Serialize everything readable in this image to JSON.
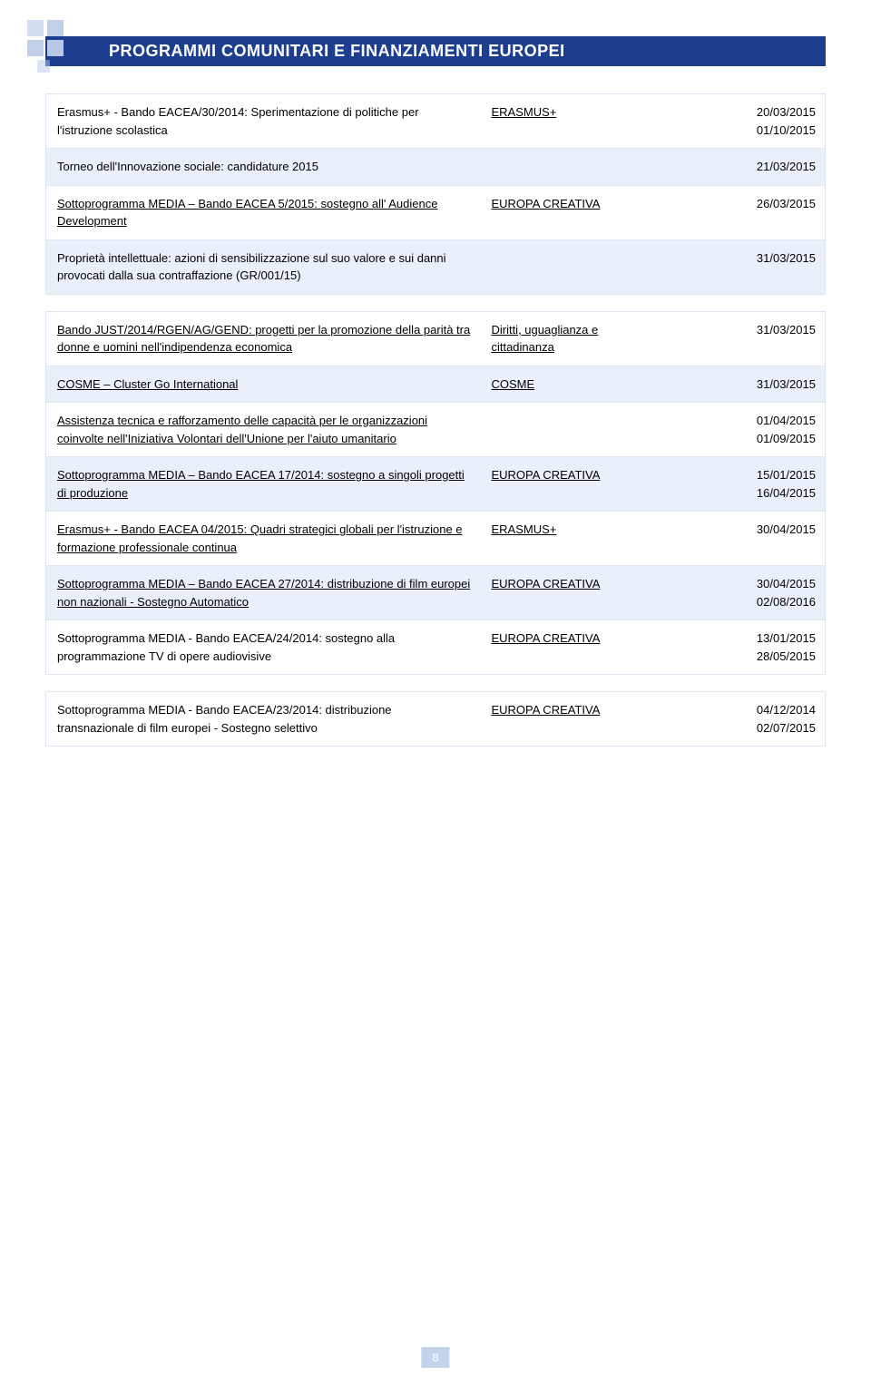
{
  "colors": {
    "header_bg": "#1d3e8f",
    "header_text": "#ffffff",
    "shaded_row": "#e9f0f9",
    "border": "#dfe6f2",
    "logo_sq": "#b7c7e5",
    "pagenum_bg": "#c5d3ea"
  },
  "header": {
    "title": "PROGRAMMI COMUNITARI E FINANZIAMENTI EUROPEI"
  },
  "blocks": [
    {
      "rows": [
        {
          "shaded": false,
          "c1": "Erasmus+ - Bando EACEA/30/2014: Sperimentazione di politiche per l'istruzione scolastica",
          "c1_ul": false,
          "c2": "ERASMUS+",
          "c2_ul": true,
          "c3a": "20/03/2015",
          "c3b": "01/10/2015"
        },
        {
          "shaded": true,
          "c1": "Torneo dell'Innovazione sociale: candidature 2015",
          "c1_ul": false,
          "c2": "",
          "c2_ul": false,
          "c3a": "21/03/2015",
          "c3b": ""
        },
        {
          "shaded": false,
          "c1": "Sottoprogramma MEDIA – Bando EACEA 5/2015: sostegno all' Audience Development",
          "c1_ul": true,
          "c2": "EUROPA CREATIVA",
          "c2_ul": true,
          "c3a": "26/03/2015",
          "c3b": ""
        },
        {
          "shaded": true,
          "c1": "Proprietà intellettuale: azioni di sensibilizzazione sul suo valore e sui danni provocati dalla sua contraffazione (GR/001/15)",
          "c1_ul": false,
          "c2": "",
          "c2_ul": false,
          "c3a": "31/03/2015",
          "c3b": ""
        }
      ]
    },
    {
      "rows": [
        {
          "shaded": false,
          "c1": "Bando JUST/2014/RGEN/AG/GEND: progetti per la promozione della parità tra donne e uomini nell'indipendenza economica",
          "c1_ul": true,
          "c2": "Diritti, uguaglianza e cittadinanza",
          "c2_ul": true,
          "c3a": "31/03/2015",
          "c3b": ""
        },
        {
          "shaded": true,
          "c1": "COSME – Cluster Go International",
          "c1_ul": true,
          "c2": "COSME",
          "c2_ul": true,
          "c3a": "31/03/2015",
          "c3b": ""
        },
        {
          "shaded": false,
          "c1": "Assistenza tecnica e rafforzamento delle capacità per le organizzazioni coinvolte nell'Iniziativa Volontari dell'Unione per l'aiuto umanitario",
          "c1_ul": true,
          "c2": "",
          "c2_ul": false,
          "c3a": "01/04/2015",
          "c3b": "01/09/2015"
        },
        {
          "shaded": true,
          "c1": "Sottoprogramma MEDIA – Bando EACEA 17/2014: sostegno a singoli progetti di produzione",
          "c1_ul": true,
          "c2": "EUROPA CREATIVA",
          "c2_ul": true,
          "c3a": "15/01/2015",
          "c3b": "16/04/2015"
        },
        {
          "shaded": false,
          "c1": "Erasmus+ - Bando EACEA 04/2015: Quadri strategici globali per l'istruzione e formazione professionale continua",
          "c1_ul": true,
          "c2": "ERASMUS+",
          "c2_ul": true,
          "c3a": "30/04/2015",
          "c3b": ""
        },
        {
          "shaded": true,
          "c1": "Sottoprogramma MEDIA – Bando EACEA 27/2014: distribuzione di film europei non nazionali - Sostegno Automatico",
          "c1_ul": true,
          "c2": "EUROPA CREATIVA",
          "c2_ul": true,
          "c3a": "30/04/2015",
          "c3b": "02/08/2016"
        },
        {
          "shaded": false,
          "c1": "Sottoprogramma MEDIA - Bando EACEA/24/2014: sostegno alla programmazione TV di opere audiovisive",
          "c1_ul": false,
          "c2": "EUROPA CREATIVA",
          "c2_ul": true,
          "c3a": "13/01/2015",
          "c3b": "28/05/2015"
        }
      ]
    },
    {
      "rows": [
        {
          "shaded": false,
          "c1": "Sottoprogramma MEDIA - Bando EACEA/23/2014: distribuzione transnazionale di film europei - Sostegno selettivo",
          "c1_ul": false,
          "c2": "EUROPA CREATIVA",
          "c2_ul": true,
          "c3a": "04/12/2014",
          "c3b": "02/07/2015"
        }
      ]
    }
  ],
  "page_number": "8"
}
